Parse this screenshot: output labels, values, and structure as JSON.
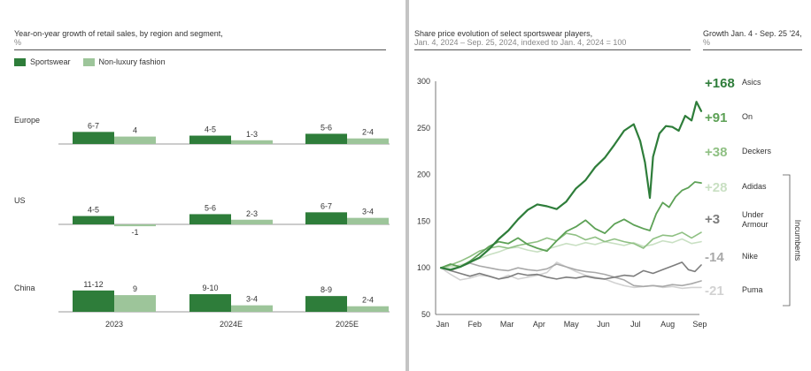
{
  "left_panel": {
    "title": "Year-on-year growth of retail sales, by region and segment,",
    "unit": "%",
    "legend": [
      {
        "label": "Sportswear",
        "color": "#2e7d3a"
      },
      {
        "label": "Non-luxury fashion",
        "color": "#9dc59a"
      }
    ]
  },
  "right_panel": {
    "title": "Share price evolution of select sportswear players,",
    "subtitle": "Jan. 4, 2024 – Sep. 25, 2024, indexed to Jan. 4, 2024 = 100",
    "growth_title": "Growth Jan. 4 - Sep. 25 '24,",
    "growth_unit": "%",
    "incumbents_label": "Incumbents"
  },
  "chart_data": [
    {
      "type": "bar",
      "title": "Year-on-year growth of retail sales, by region and segment,",
      "unit": "%",
      "categories": [
        "2023",
        "2024E",
        "2025E"
      ],
      "regions": [
        "Europe",
        "US",
        "China"
      ],
      "series": [
        {
          "name": "Sportswear",
          "color": "#2e7d3a",
          "values": {
            "Europe": [
              6.5,
              4.5,
              5.5
            ],
            "US": [
              4.5,
              5.5,
              6.5
            ],
            "China": [
              11.5,
              9.5,
              8.5
            ]
          },
          "labels": {
            "Europe": [
              "6-7",
              "4-5",
              "5-6"
            ],
            "US": [
              "4-5",
              "5-6",
              "6-7"
            ],
            "China": [
              "11-12",
              "9-10",
              "8-9"
            ]
          }
        },
        {
          "name": "Non-luxury fashion",
          "color": "#9dc59a",
          "values": {
            "Europe": [
              4,
              2,
              3
            ],
            "US": [
              -1,
              2.5,
              3.5
            ],
            "China": [
              9,
              3.5,
              3
            ]
          },
          "labels": {
            "Europe": [
              "4",
              "1-3",
              "2-4"
            ],
            "US": [
              "-1",
              "2-3",
              "3-4"
            ],
            "China": [
              "9",
              "3-4",
              "2-4"
            ]
          }
        }
      ]
    },
    {
      "type": "line",
      "title": "Share price evolution of select sportswear players,",
      "subtitle": "Jan. 4, 2024 – Sep. 25, 2024, indexed to Jan. 4, 2024 = 100",
      "x_ticks": [
        "Jan",
        "Feb",
        "Mar",
        "Apr",
        "May",
        "Jun",
        "Jul",
        "Aug",
        "Sep"
      ],
      "y_ticks": [
        50,
        100,
        150,
        200,
        250,
        300
      ],
      "ylim": [
        50,
        300
      ],
      "series": [
        {
          "name": "Asics",
          "growth": "+168",
          "color": "#2e7d3a",
          "width": 2.2,
          "points": [
            [
              0,
              100
            ],
            [
              0.3,
              98
            ],
            [
              0.6,
              101
            ],
            [
              0.9,
              106
            ],
            [
              1.2,
              111
            ],
            [
              1.5,
              120
            ],
            [
              1.8,
              131
            ],
            [
              2.1,
              140
            ],
            [
              2.4,
              152
            ],
            [
              2.7,
              162
            ],
            [
              3.0,
              168
            ],
            [
              3.3,
              166
            ],
            [
              3.6,
              163
            ],
            [
              3.9,
              171
            ],
            [
              4.2,
              185
            ],
            [
              4.5,
              194
            ],
            [
              4.8,
              208
            ],
            [
              5.1,
              218
            ],
            [
              5.4,
              232
            ],
            [
              5.7,
              247
            ],
            [
              6.0,
              254
            ],
            [
              6.2,
              236
            ],
            [
              6.35,
              213
            ],
            [
              6.5,
              175
            ],
            [
              6.6,
              219
            ],
            [
              6.8,
              244
            ],
            [
              7.0,
              252
            ],
            [
              7.2,
              251
            ],
            [
              7.4,
              247
            ],
            [
              7.6,
              263
            ],
            [
              7.8,
              258
            ],
            [
              7.95,
              278
            ],
            [
              8.1,
              268
            ]
          ]
        },
        {
          "name": "On",
          "growth": "+91",
          "color": "#5da156",
          "width": 1.8,
          "points": [
            [
              0,
              100
            ],
            [
              0.3,
              104
            ],
            [
              0.6,
              101
            ],
            [
              0.9,
              107
            ],
            [
              1.2,
              115
            ],
            [
              1.5,
              123
            ],
            [
              1.8,
              128
            ],
            [
              2.1,
              126
            ],
            [
              2.4,
              132
            ],
            [
              2.7,
              125
            ],
            [
              3.0,
              121
            ],
            [
              3.3,
              118
            ],
            [
              3.6,
              129
            ],
            [
              3.9,
              139
            ],
            [
              4.2,
              144
            ],
            [
              4.5,
              151
            ],
            [
              4.8,
              142
            ],
            [
              5.1,
              137
            ],
            [
              5.4,
              147
            ],
            [
              5.7,
              152
            ],
            [
              6.0,
              146
            ],
            [
              6.3,
              142
            ],
            [
              6.5,
              140
            ],
            [
              6.7,
              158
            ],
            [
              6.9,
              170
            ],
            [
              7.1,
              165
            ],
            [
              7.3,
              176
            ],
            [
              7.5,
              183
            ],
            [
              7.7,
              186
            ],
            [
              7.9,
              192
            ],
            [
              8.1,
              191
            ]
          ]
        },
        {
          "name": "Deckers",
          "growth": "+38",
          "color": "#8fc083",
          "width": 1.6,
          "points": [
            [
              0,
              100
            ],
            [
              0.3,
              103
            ],
            [
              0.6,
              107
            ],
            [
              0.9,
              112
            ],
            [
              1.2,
              118
            ],
            [
              1.5,
              121
            ],
            [
              1.8,
              123
            ],
            [
              2.1,
              121
            ],
            [
              2.4,
              124
            ],
            [
              2.7,
              126
            ],
            [
              3.0,
              128
            ],
            [
              3.3,
              132
            ],
            [
              3.6,
              129
            ],
            [
              3.9,
              137
            ],
            [
              4.2,
              135
            ],
            [
              4.5,
              130
            ],
            [
              4.8,
              133
            ],
            [
              5.1,
              128
            ],
            [
              5.4,
              131
            ],
            [
              5.7,
              128
            ],
            [
              6.0,
              126
            ],
            [
              6.3,
              121
            ],
            [
              6.6,
              131
            ],
            [
              6.9,
              135
            ],
            [
              7.2,
              134
            ],
            [
              7.5,
              138
            ],
            [
              7.8,
              132
            ],
            [
              8.1,
              138
            ]
          ]
        },
        {
          "name": "Adidas",
          "growth": "+28",
          "color": "#c9e0c3",
          "width": 1.6,
          "points": [
            [
              0,
              100
            ],
            [
              0.3,
              101
            ],
            [
              0.6,
              103
            ],
            [
              0.9,
              106
            ],
            [
              1.2,
              110
            ],
            [
              1.5,
              114
            ],
            [
              1.8,
              117
            ],
            [
              2.1,
              121
            ],
            [
              2.4,
              122
            ],
            [
              2.7,
              119
            ],
            [
              3.0,
              117
            ],
            [
              3.3,
              120
            ],
            [
              3.6,
              123
            ],
            [
              3.9,
              126
            ],
            [
              4.2,
              124
            ],
            [
              4.5,
              127
            ],
            [
              4.8,
              125
            ],
            [
              5.1,
              128
            ],
            [
              5.4,
              126
            ],
            [
              5.7,
              124
            ],
            [
              6.0,
              127
            ],
            [
              6.3,
              123
            ],
            [
              6.6,
              125
            ],
            [
              6.9,
              129
            ],
            [
              7.2,
              127
            ],
            [
              7.5,
              131
            ],
            [
              7.8,
              126
            ],
            [
              8.1,
              128
            ]
          ]
        },
        {
          "name": "Under Armour",
          "growth": "+3",
          "color": "#7d7d7d",
          "width": 1.6,
          "points": [
            [
              0,
              100
            ],
            [
              0.3,
              97
            ],
            [
              0.6,
              94
            ],
            [
              0.9,
              91
            ],
            [
              1.2,
              94
            ],
            [
              1.5,
              91
            ],
            [
              1.8,
              88
            ],
            [
              2.1,
              90
            ],
            [
              2.4,
              94
            ],
            [
              2.7,
              92
            ],
            [
              3.0,
              93
            ],
            [
              3.3,
              90
            ],
            [
              3.6,
              88
            ],
            [
              3.9,
              90
            ],
            [
              4.2,
              89
            ],
            [
              4.5,
              91
            ],
            [
              4.8,
              89
            ],
            [
              5.1,
              88
            ],
            [
              5.4,
              90
            ],
            [
              5.7,
              92
            ],
            [
              6.0,
              91
            ],
            [
              6.3,
              97
            ],
            [
              6.6,
              94
            ],
            [
              6.9,
              98
            ],
            [
              7.2,
              102
            ],
            [
              7.5,
              106
            ],
            [
              7.7,
              98
            ],
            [
              7.9,
              96
            ],
            [
              8.1,
              103
            ]
          ]
        },
        {
          "name": "Nike",
          "growth": "-14",
          "color": "#a9a9a9",
          "width": 1.6,
          "points": [
            [
              0,
              100
            ],
            [
              0.3,
              97
            ],
            [
              0.6,
              101
            ],
            [
              0.9,
              105
            ],
            [
              1.2,
              102
            ],
            [
              1.5,
              100
            ],
            [
              1.8,
              98
            ],
            [
              2.1,
              97
            ],
            [
              2.4,
              100
            ],
            [
              2.7,
              98
            ],
            [
              3.0,
              97
            ],
            [
              3.3,
              99
            ],
            [
              3.6,
              104
            ],
            [
              3.9,
              101
            ],
            [
              4.2,
              98
            ],
            [
              4.5,
              96
            ],
            [
              4.8,
              95
            ],
            [
              5.1,
              93
            ],
            [
              5.4,
              90
            ],
            [
              5.7,
              87
            ],
            [
              6.0,
              81
            ],
            [
              6.3,
              80
            ],
            [
              6.6,
              81
            ],
            [
              6.9,
              80
            ],
            [
              7.2,
              82
            ],
            [
              7.5,
              81
            ],
            [
              7.8,
              83
            ],
            [
              8.1,
              86
            ]
          ]
        },
        {
          "name": "Puma",
          "growth": "-21",
          "color": "#d2d2d2",
          "width": 1.6,
          "points": [
            [
              0,
              100
            ],
            [
              0.3,
              93
            ],
            [
              0.6,
              87
            ],
            [
              0.9,
              89
            ],
            [
              1.2,
              92
            ],
            [
              1.5,
              91
            ],
            [
              1.8,
              88
            ],
            [
              2.1,
              92
            ],
            [
              2.4,
              88
            ],
            [
              2.7,
              90
            ],
            [
              3.0,
              92
            ],
            [
              3.3,
              95
            ],
            [
              3.6,
              106
            ],
            [
              3.9,
              101
            ],
            [
              4.2,
              96
            ],
            [
              4.5,
              92
            ],
            [
              4.8,
              90
            ],
            [
              5.1,
              88
            ],
            [
              5.4,
              84
            ],
            [
              5.7,
              81
            ],
            [
              6.0,
              79
            ],
            [
              6.3,
              80
            ],
            [
              6.6,
              81
            ],
            [
              6.9,
              79
            ],
            [
              7.2,
              80
            ],
            [
              7.5,
              78
            ],
            [
              7.8,
              79
            ],
            [
              8.1,
              79
            ]
          ]
        }
      ]
    }
  ]
}
